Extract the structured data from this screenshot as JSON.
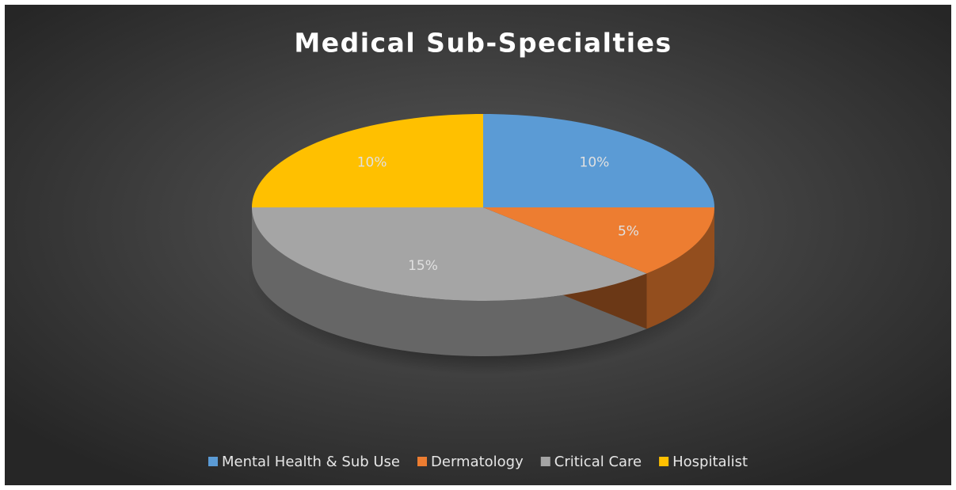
{
  "chart_data": {
    "type": "pie",
    "title": "Medical Sub-Specialties",
    "categories": [
      "Mental Health & Sub Use",
      "Dermatology",
      "Critical Care",
      "Hospitalist"
    ],
    "values": [
      10,
      5,
      15,
      10
    ],
    "value_labels": [
      "10%",
      "5%",
      "15%",
      "10%"
    ],
    "colors": [
      "#5b9bd5",
      "#ed7d31",
      "#a5a5a5",
      "#ffc000"
    ],
    "legend": "bottom"
  }
}
